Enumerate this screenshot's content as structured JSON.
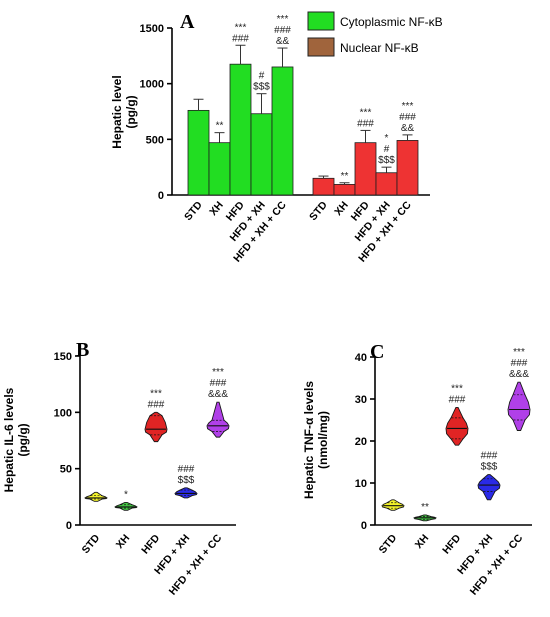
{
  "colors": {
    "cyto": "#22dd22",
    "nuc": "#ee3333",
    "legend_nuc": "#a0643c",
    "std": "#f2f22a",
    "xh": "#44c844",
    "hfd": "#e02424",
    "hfdxh": "#2a2ae6",
    "cc": "#b040e8"
  },
  "chart_data": [
    {
      "panel": "A",
      "type": "bar",
      "ylabel": "Hepatic level\n(pg/g)",
      "ylim": [
        0,
        1500
      ],
      "yticks": [
        "0",
        "500",
        "1000",
        "1500"
      ],
      "categories": [
        "STD",
        "XH",
        "HFD",
        "HFD + XH",
        "HFD + XH + CC"
      ],
      "legend": [
        "Cytoplasmic NF-κB",
        "Nuclear NF-κB"
      ],
      "series": [
        {
          "name": "Cytoplasmic NF-κB",
          "values": [
            760,
            470,
            1175,
            730,
            1150
          ],
          "errors": [
            100,
            90,
            170,
            180,
            170
          ],
          "annotations": [
            [],
            [
              "**"
            ],
            [
              "***",
              "###"
            ],
            [
              "#",
              "$$$"
            ],
            [
              "***",
              "###",
              "&&"
            ]
          ]
        },
        {
          "name": "Nuclear NF-κB",
          "values": [
            150,
            95,
            470,
            200,
            490
          ],
          "errors": [
            20,
            15,
            110,
            50,
            50
          ],
          "annotations": [
            [],
            [
              "**"
            ],
            [
              "***",
              "###"
            ],
            [
              "*",
              "#",
              "$$$"
            ],
            [
              "***",
              "###",
              "&&"
            ]
          ]
        }
      ]
    },
    {
      "panel": "B",
      "type": "violin",
      "ylabel": "Hepatic IL-6 levels\n(pg/g)",
      "ylim": [
        0,
        150
      ],
      "yticks": [
        "0",
        "50",
        "100",
        "150"
      ],
      "categories": [
        "STD",
        "XH",
        "HFD",
        "HFD + XH",
        "HFD + XH + CC"
      ],
      "groups": [
        {
          "min": 21,
          "q1": 23,
          "median": 24,
          "q3": 26,
          "max": 29,
          "annotations": []
        },
        {
          "min": 13,
          "q1": 15,
          "median": 16,
          "q3": 18,
          "max": 20,
          "annotations": [
            "*"
          ]
        },
        {
          "min": 74,
          "q1": 80,
          "median": 85,
          "q3": 97,
          "max": 100,
          "annotations": [
            "***",
            "###"
          ]
        },
        {
          "min": 24,
          "q1": 26,
          "median": 28,
          "q3": 31,
          "max": 33,
          "annotations": [
            "###",
            "$$$"
          ]
        },
        {
          "min": 78,
          "q1": 83,
          "median": 88,
          "q3": 93,
          "max": 109,
          "annotations": [
            "***",
            "###",
            "&&&"
          ]
        }
      ]
    },
    {
      "panel": "C",
      "type": "violin",
      "ylabel": "Hepatic TNF-α levels\n(nmol/mg)",
      "ylim": [
        0,
        40
      ],
      "yticks": [
        "0",
        "10",
        "20",
        "30",
        "40"
      ],
      "categories": [
        "STD",
        "XH",
        "HFD",
        "HFD + XH",
        "HFD + XH + CC"
      ],
      "groups": [
        {
          "min": 3.5,
          "q1": 4.0,
          "median": 4.6,
          "q3": 5.3,
          "max": 6.0,
          "annotations": []
        },
        {
          "min": 1.0,
          "q1": 1.3,
          "median": 1.7,
          "q3": 2.0,
          "max": 2.4,
          "annotations": [
            "**"
          ]
        },
        {
          "min": 19,
          "q1": 20.5,
          "median": 23,
          "q3": 25.5,
          "max": 28,
          "annotations": [
            "***",
            "###"
          ]
        },
        {
          "min": 6,
          "q1": 8,
          "median": 9.5,
          "q3": 11,
          "max": 12,
          "annotations": [
            "###",
            "$$$"
          ]
        },
        {
          "min": 22.5,
          "q1": 25,
          "median": 27.5,
          "q3": 31,
          "max": 34,
          "annotations": [
            "***",
            "###",
            "&&&"
          ]
        }
      ]
    }
  ]
}
